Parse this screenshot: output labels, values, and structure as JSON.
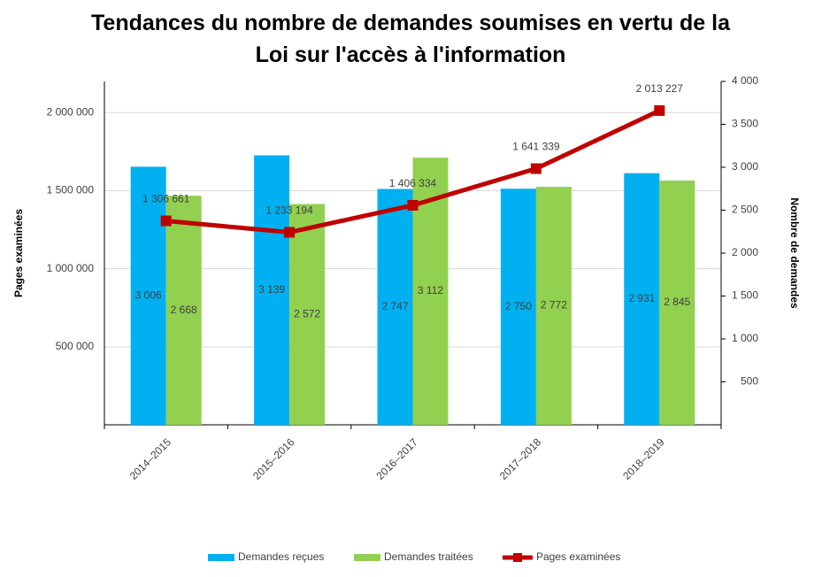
{
  "chart_data": {
    "type": "bar-line",
    "title": "Tendances du nombre de demandes soumises en vertu de la Loi sur l'accès à l'information",
    "y_label": "Pages examinées",
    "y2_label": "Nombre de demandes",
    "categories": [
      "2014–2015",
      "2015–2016",
      "2016–2017",
      "2017–2018",
      "2018–2019"
    ],
    "series": [
      {
        "name": "Demandes reçues",
        "type": "bar",
        "axis": "y2",
        "color": "#00b0f0",
        "values": [
          3006,
          3139,
          2747,
          2750,
          2931
        ],
        "value_labels": [
          "3 006",
          "3 139",
          "2 747",
          "2 750",
          "2 931"
        ]
      },
      {
        "name": "Demandes traitées",
        "type": "bar",
        "axis": "y2",
        "color": "#92d050",
        "values": [
          2668,
          2572,
          3112,
          2772,
          2845
        ],
        "value_labels": [
          "2 668",
          "2 572",
          "3 112",
          "2 772",
          "2 845"
        ]
      },
      {
        "name": "Pages examinées",
        "type": "line",
        "axis": "y",
        "color": "#c00000",
        "values": [
          1306661,
          1233194,
          1406334,
          1641339,
          2013227
        ],
        "value_labels": [
          "1 306 661",
          "1 233 194",
          "1 406 334",
          "1 641 339",
          "2 013 227"
        ]
      }
    ],
    "ylim": [
      0,
      2200000
    ],
    "yticks": [
      {
        "value": 500000,
        "label": "500 000"
      },
      {
        "value": 1000000,
        "label": "1 000 000"
      },
      {
        "value": 1500000,
        "label": "1 500 000"
      },
      {
        "value": 2000000,
        "label": "2 000 000"
      }
    ],
    "y2lim": [
      0,
      4000
    ],
    "y2ticks": [
      500,
      {
        "value": 1000,
        "label": "1 000"
      },
      {
        "value": 1500,
        "label": "1 500"
      },
      {
        "value": 2000,
        "label": "2 000"
      },
      {
        "value": 2500,
        "label": "2 500"
      },
      {
        "value": 3000,
        "label": "3 000"
      },
      {
        "value": 3500,
        "label": "3 500"
      },
      {
        "value": 4000,
        "label": "4 000"
      }
    ],
    "grid": true,
    "legend": "bottom"
  }
}
